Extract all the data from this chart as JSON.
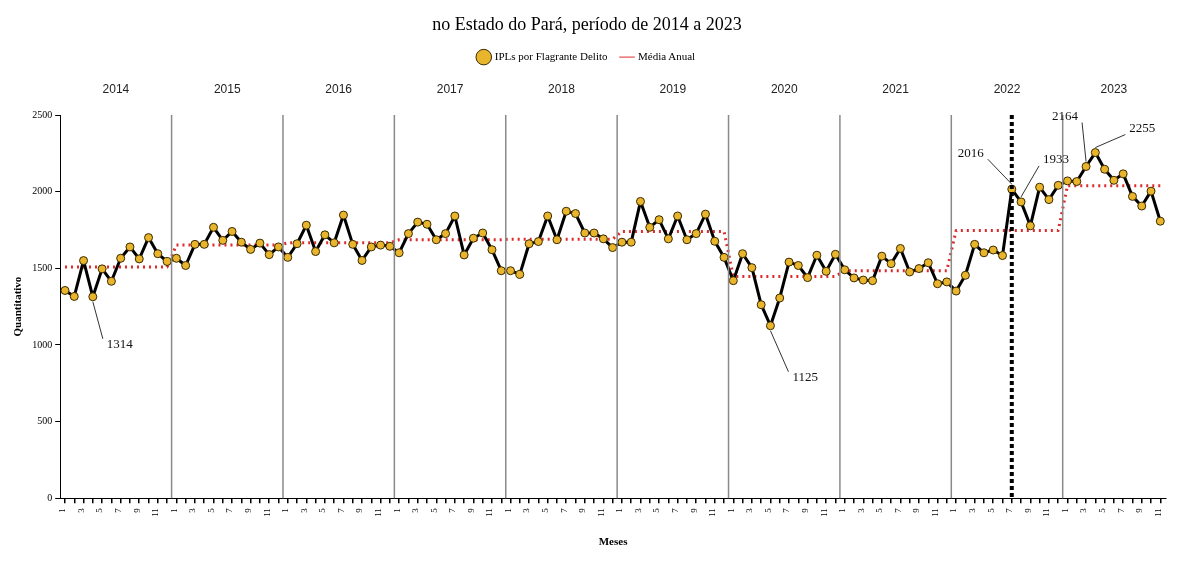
{
  "chart_data": {
    "type": "line",
    "title": "no Estado do Pará, período de 2014 a 2023",
    "xlabel": "Meses",
    "ylabel": "Quantitativo",
    "x": [
      "2014-01",
      "2014-02",
      "2014-03",
      "2014-04",
      "2014-05",
      "2014-06",
      "2014-07",
      "2014-08",
      "2014-09",
      "2014-10",
      "2014-11",
      "2014-12",
      "2015-01",
      "2015-02",
      "2015-03",
      "2015-04",
      "2015-05",
      "2015-06",
      "2015-07",
      "2015-08",
      "2015-09",
      "2015-10",
      "2015-11",
      "2015-12",
      "2016-01",
      "2016-02",
      "2016-03",
      "2016-04",
      "2016-05",
      "2016-06",
      "2016-07",
      "2016-08",
      "2016-09",
      "2016-10",
      "2016-11",
      "2016-12",
      "2017-01",
      "2017-02",
      "2017-03",
      "2017-04",
      "2017-05",
      "2017-06",
      "2017-07",
      "2017-08",
      "2017-09",
      "2017-10",
      "2017-11",
      "2017-12",
      "2018-01",
      "2018-02",
      "2018-03",
      "2018-04",
      "2018-05",
      "2018-06",
      "2018-07",
      "2018-08",
      "2018-09",
      "2018-10",
      "2018-11",
      "2018-12",
      "2019-01",
      "2019-02",
      "2019-03",
      "2019-04",
      "2019-05",
      "2019-06",
      "2019-07",
      "2019-08",
      "2019-09",
      "2019-10",
      "2019-11",
      "2019-12",
      "2020-01",
      "2020-02",
      "2020-03",
      "2020-04",
      "2020-05",
      "2020-06",
      "2020-07",
      "2020-08",
      "2020-09",
      "2020-10",
      "2020-11",
      "2020-12",
      "2021-01",
      "2021-02",
      "2021-03",
      "2021-04",
      "2021-05",
      "2021-06",
      "2021-07",
      "2021-08",
      "2021-09",
      "2021-10",
      "2021-11",
      "2021-12",
      "2022-01",
      "2022-02",
      "2022-03",
      "2022-04",
      "2022-05",
      "2022-06",
      "2022-07",
      "2022-08",
      "2022-09",
      "2022-10",
      "2022-11",
      "2022-12",
      "2023-01",
      "2023-02",
      "2023-03",
      "2023-04",
      "2023-05",
      "2023-06",
      "2023-07",
      "2023-08",
      "2023-09",
      "2023-10",
      "2023-11"
    ],
    "series": [
      {
        "name": "IPLs por Flagrante Delito",
        "color": "#000000",
        "marker": "circle",
        "values": [
          1355,
          1316,
          1550,
          1314,
          1496,
          1415,
          1565,
          1639,
          1561,
          1700,
          1595,
          1544,
          1565,
          1518,
          1656,
          1656,
          1767,
          1682,
          1740,
          1670,
          1623,
          1664,
          1589,
          1639,
          1571,
          1660,
          1781,
          1609,
          1718,
          1666,
          1847,
          1656,
          1551,
          1639,
          1651,
          1643,
          1601,
          1726,
          1801,
          1787,
          1686,
          1726,
          1841,
          1587,
          1696,
          1730,
          1621,
          1484,
          1484,
          1460,
          1660,
          1674,
          1841,
          1686,
          1872,
          1857,
          1730,
          1730,
          1692,
          1635,
          1670,
          1670,
          1936,
          1767,
          1817,
          1692,
          1841,
          1686,
          1726,
          1853,
          1676,
          1571,
          1419,
          1595,
          1504,
          1262,
          1125,
          1306,
          1540,
          1518,
          1439,
          1585,
          1480,
          1591,
          1490,
          1437,
          1423,
          1419,
          1579,
          1530,
          1629,
          1476,
          1498,
          1536,
          1399,
          1411,
          1351,
          1454,
          1656,
          1601,
          1619,
          1583,
          2016,
          1933,
          1777,
          2029,
          1948,
          2041,
          2070,
          2066,
          2164,
          2255,
          2146,
          2074,
          2116,
          1969,
          1906,
          2003,
          1807
        ],
        "value_labels": [
          null,
          null,
          null,
          "1314",
          null,
          null,
          null,
          null,
          null,
          null,
          null,
          null,
          null,
          null,
          null,
          null,
          null,
          null,
          null,
          null,
          null,
          null,
          null,
          null,
          null,
          null,
          null,
          null,
          null,
          null,
          null,
          null,
          null,
          null,
          null,
          null,
          null,
          null,
          null,
          null,
          null,
          null,
          null,
          null,
          null,
          null,
          null,
          null,
          null,
          null,
          null,
          null,
          null,
          null,
          null,
          null,
          null,
          null,
          null,
          null,
          null,
          null,
          null,
          null,
          null,
          null,
          null,
          null,
          null,
          null,
          null,
          null,
          null,
          null,
          null,
          null,
          "1125",
          null,
          null,
          null,
          null,
          null,
          null,
          null,
          null,
          null,
          null,
          null,
          null,
          null,
          null,
          null,
          null,
          null,
          null,
          null,
          null,
          null,
          null,
          null,
          null,
          null,
          "2016",
          "1933",
          null,
          null,
          null,
          null,
          null,
          null,
          "2164",
          "2255",
          null,
          null,
          null,
          null,
          null,
          null,
          null
        ]
      },
      {
        "name": "Média Anual",
        "color": "#dd2a2a",
        "type": "line",
        "marker": "none",
        "line_style": "dotted",
        "values": [
          1508,
          1508,
          1508,
          1508,
          1508,
          1508,
          1508,
          1508,
          1508,
          1508,
          1508,
          1508,
          1651,
          1651,
          1651,
          1651,
          1651,
          1651,
          1651,
          1651,
          1651,
          1651,
          1651,
          1651,
          1666,
          1666,
          1666,
          1666,
          1666,
          1666,
          1666,
          1666,
          1666,
          1666,
          1666,
          1666,
          1686,
          1686,
          1686,
          1686,
          1686,
          1686,
          1686,
          1686,
          1686,
          1686,
          1686,
          1686,
          1690,
          1690,
          1690,
          1690,
          1690,
          1690,
          1690,
          1690,
          1690,
          1690,
          1690,
          1690,
          1740,
          1740,
          1740,
          1740,
          1740,
          1740,
          1740,
          1740,
          1740,
          1740,
          1740,
          1740,
          1447,
          1447,
          1447,
          1447,
          1447,
          1447,
          1447,
          1447,
          1447,
          1447,
          1447,
          1447,
          1484,
          1484,
          1484,
          1484,
          1484,
          1484,
          1484,
          1484,
          1484,
          1484,
          1484,
          1484,
          1746,
          1746,
          1746,
          1746,
          1746,
          1746,
          1746,
          1746,
          1746,
          1746,
          1746,
          1746,
          2039,
          2039,
          2039,
          2039,
          2039,
          2039,
          2039,
          2039,
          2039,
          2039,
          2039
        ]
      }
    ],
    "xlim": [
      "2013-12-16",
      "2023-11-20"
    ],
    "xticks": [
      {
        "value": "2014-01",
        "label": "1"
      },
      {
        "value": "2014-02",
        "label": null
      },
      {
        "value": "2014-03",
        "label": "3"
      },
      {
        "value": "2014-04",
        "label": null
      },
      {
        "value": "2014-05",
        "label": "5"
      },
      {
        "value": "2014-06",
        "label": null
      },
      {
        "value": "2014-07",
        "label": "7"
      },
      {
        "value": "2014-08",
        "label": null
      },
      {
        "value": "2014-09",
        "label": "9"
      },
      {
        "value": "2014-10",
        "label": null
      },
      {
        "value": "2014-11",
        "label": "11"
      },
      {
        "value": "2014-12",
        "label": null
      },
      {
        "value": "2015-01",
        "label": "1"
      },
      {
        "value": "2015-02",
        "label": null
      },
      {
        "value": "2015-03",
        "label": "3"
      },
      {
        "value": "2015-04",
        "label": null
      },
      {
        "value": "2015-05",
        "label": "5"
      },
      {
        "value": "2015-06",
        "label": null
      },
      {
        "value": "2015-07",
        "label": "7"
      },
      {
        "value": "2015-08",
        "label": null
      },
      {
        "value": "2015-09",
        "label": "9"
      },
      {
        "value": "2015-10",
        "label": null
      },
      {
        "value": "2015-11",
        "label": "11"
      },
      {
        "value": "2015-12",
        "label": null
      },
      {
        "value": "2016-01",
        "label": "1"
      },
      {
        "value": "2016-02",
        "label": null
      },
      {
        "value": "2016-03",
        "label": "3"
      },
      {
        "value": "2016-04",
        "label": null
      },
      {
        "value": "2016-05",
        "label": "5"
      },
      {
        "value": "2016-06",
        "label": null
      },
      {
        "value": "2016-07",
        "label": "7"
      },
      {
        "value": "2016-08",
        "label": null
      },
      {
        "value": "2016-09",
        "label": "9"
      },
      {
        "value": "2016-10",
        "label": null
      },
      {
        "value": "2016-11",
        "label": "11"
      },
      {
        "value": "2016-12",
        "label": null
      },
      {
        "value": "2017-01",
        "label": "1"
      },
      {
        "value": "2017-02",
        "label": null
      },
      {
        "value": "2017-03",
        "label": "3"
      },
      {
        "value": "2017-04",
        "label": null
      },
      {
        "value": "2017-05",
        "label": "5"
      },
      {
        "value": "2017-06",
        "label": null
      },
      {
        "value": "2017-07",
        "label": "7"
      },
      {
        "value": "2017-08",
        "label": null
      },
      {
        "value": "2017-09",
        "label": "9"
      },
      {
        "value": "2017-10",
        "label": null
      },
      {
        "value": "2017-11",
        "label": "11"
      },
      {
        "value": "2017-12",
        "label": null
      },
      {
        "value": "2018-01",
        "label": "1"
      },
      {
        "value": "2018-02",
        "label": null
      },
      {
        "value": "2018-03",
        "label": "3"
      },
      {
        "value": "2018-04",
        "label": null
      },
      {
        "value": "2018-05",
        "label": "5"
      },
      {
        "value": "2018-06",
        "label": null
      },
      {
        "value": "2018-07",
        "label": "7"
      },
      {
        "value": "2018-08",
        "label": null
      },
      {
        "value": "2018-09",
        "label": "9"
      },
      {
        "value": "2018-10",
        "label": null
      },
      {
        "value": "2018-11",
        "label": "11"
      },
      {
        "value": "2018-12",
        "label": null
      },
      {
        "value": "2019-01",
        "label": "1"
      },
      {
        "value": "2019-02",
        "label": null
      },
      {
        "value": "2019-03",
        "label": "3"
      },
      {
        "value": "2019-04",
        "label": null
      },
      {
        "value": "2019-05",
        "label": "5"
      },
      {
        "value": "2019-06",
        "label": null
      },
      {
        "value": "2019-07",
        "label": "7"
      },
      {
        "value": "2019-08",
        "label": null
      },
      {
        "value": "2019-09",
        "label": "9"
      },
      {
        "value": "2019-10",
        "label": null
      },
      {
        "value": "2019-11",
        "label": "11"
      },
      {
        "value": "2019-12",
        "label": null
      },
      {
        "value": "2020-01",
        "label": "1"
      },
      {
        "value": "2020-02",
        "label": null
      },
      {
        "value": "2020-03",
        "label": "3"
      },
      {
        "value": "2020-04",
        "label": null
      },
      {
        "value": "2020-05",
        "label": "5"
      },
      {
        "value": "2020-06",
        "label": null
      },
      {
        "value": "2020-07",
        "label": "7"
      },
      {
        "value": "2020-08",
        "label": null
      },
      {
        "value": "2020-09",
        "label": "9"
      },
      {
        "value": "2020-10",
        "label": null
      },
      {
        "value": "2020-11",
        "label": "11"
      },
      {
        "value": "2020-12",
        "label": null
      },
      {
        "value": "2021-01",
        "label": "1"
      },
      {
        "value": "2021-02",
        "label": null
      },
      {
        "value": "2021-03",
        "label": "3"
      },
      {
        "value": "2021-04",
        "label": null
      },
      {
        "value": "2021-05",
        "label": "5"
      },
      {
        "value": "2021-06",
        "label": null
      },
      {
        "value": "2021-07",
        "label": "7"
      },
      {
        "value": "2021-08",
        "label": null
      },
      {
        "value": "2021-09",
        "label": "9"
      },
      {
        "value": "2021-10",
        "label": null
      },
      {
        "value": "2021-11",
        "label": "11"
      },
      {
        "value": "2021-12",
        "label": null
      },
      {
        "value": "2022-01",
        "label": "1"
      },
      {
        "value": "2022-02",
        "label": null
      },
      {
        "value": "2022-03",
        "label": "3"
      },
      {
        "value": "2022-04",
        "label": null
      },
      {
        "value": "2022-05",
        "label": "5"
      },
      {
        "value": "2022-06",
        "label": null
      },
      {
        "value": "2022-07",
        "label": "7"
      },
      {
        "value": "2022-08",
        "label": null
      },
      {
        "value": "2022-09",
        "label": "9"
      },
      {
        "value": "2022-10",
        "label": null
      },
      {
        "value": "2022-11",
        "label": "11"
      },
      {
        "value": "2022-12",
        "label": null
      },
      {
        "value": "2023-01",
        "label": "1"
      },
      {
        "value": "2023-02",
        "label": null
      },
      {
        "value": "2023-03",
        "label": "3"
      },
      {
        "value": "2023-04",
        "label": null
      },
      {
        "value": "2023-05",
        "label": "5"
      },
      {
        "value": "2023-06",
        "label": null
      },
      {
        "value": "2023-07",
        "label": "7"
      },
      {
        "value": "2023-08",
        "label": null
      },
      {
        "value": "2023-09",
        "label": "9"
      },
      {
        "value": "2023-10",
        "label": null
      },
      {
        "value": "2023-11",
        "label": "11"
      }
    ],
    "ylim": [
      0,
      2500
    ],
    "yticks": [
      0,
      500,
      1000,
      1500,
      2000,
      2500
    ],
    "x2lim": [
      "2013-12-16",
      "2023-11-20"
    ],
    "x2ticks": [
      {
        "value": "2014-06-16",
        "label": "2014"
      },
      {
        "value": "2015-06-16",
        "label": "2015"
      },
      {
        "value": "2016-06-16",
        "label": "2016"
      },
      {
        "value": "2017-06-16",
        "label": "2017"
      },
      {
        "value": "2018-06-16",
        "label": "2018"
      },
      {
        "value": "2019-06-16",
        "label": "2019"
      },
      {
        "value": "2020-06-16",
        "label": "2020"
      },
      {
        "value": "2021-06-16",
        "label": "2021"
      },
      {
        "value": "2022-06-16",
        "label": "2022"
      },
      {
        "value": "2023-06-01",
        "label": "2023"
      }
    ],
    "ref_lines": [
      {
        "axis": "x",
        "value": "2014-12-16",
        "color": "#8a8a8a",
        "line_style": "solid"
      },
      {
        "axis": "x",
        "value": "2015-12-16",
        "color": "#8a8a8a",
        "line_style": "solid"
      },
      {
        "axis": "x",
        "value": "2016-12-16",
        "color": "#8a8a8a",
        "line_style": "solid"
      },
      {
        "axis": "x",
        "value": "2017-12-16",
        "color": "#8a8a8a",
        "line_style": "solid"
      },
      {
        "axis": "x",
        "value": "2018-12-16",
        "color": "#8a8a8a",
        "line_style": "solid"
      },
      {
        "axis": "x",
        "value": "2019-12-16",
        "color": "#8a8a8a",
        "line_style": "solid"
      },
      {
        "axis": "x",
        "value": "2020-12-16",
        "color": "#8a8a8a",
        "line_style": "solid"
      },
      {
        "axis": "x",
        "value": "2021-12-16",
        "color": "#8a8a8a",
        "line_style": "solid"
      },
      {
        "axis": "x",
        "value": "2022-12-16",
        "color": "#8a8a8a",
        "line_style": "solid"
      },
      {
        "axis": "x",
        "value": "2022-07",
        "color": "#000000",
        "line_style": "dotted"
      }
    ],
    "legend": "top",
    "grid": false
  }
}
